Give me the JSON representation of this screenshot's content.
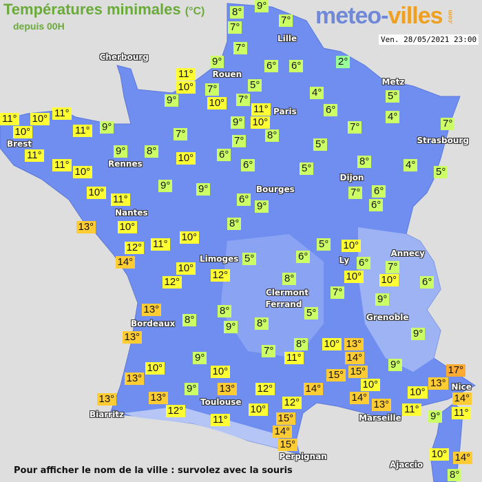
{
  "header": {
    "title": "Températures minimales",
    "unit": "(°C)",
    "subtitle": "depuis 00H"
  },
  "logo": {
    "part1": "meteo-",
    "part2": "villes",
    "suffix": ".com"
  },
  "datetime": "Ven. 28/05/2021 23:00",
  "footer": "Pour afficher le nom de la ville : survolez avec la souris",
  "colors": {
    "sea": "#dedede",
    "land": "#6f8ef0",
    "cold": "#99ff99",
    "cool": "#ccff66",
    "mild": "#ffff33",
    "warm": "#ffcc33",
    "hot": "#ffaa33"
  },
  "cities": [
    "Cherbourg",
    "Lille",
    "Rouen",
    "Metz",
    "Paris",
    "Brest",
    "Rennes",
    "Strasbourg",
    "Dijon",
    "Bourges",
    "Nantes",
    "Annecy",
    "Limoges",
    "Ly",
    "Clermont",
    "Ferrand",
    "Grenoble",
    "Bordeaux",
    "Toulouse",
    "Nice",
    "Biarritz",
    "Marseille",
    "Perpignan",
    "Ajaccio"
  ],
  "temperatures": [
    8,
    9,
    7,
    7,
    7,
    9,
    6,
    6,
    2,
    11,
    10,
    7,
    5,
    9,
    10,
    7,
    11,
    10,
    4,
    6,
    5,
    4,
    11,
    11,
    10,
    10,
    11,
    9,
    9,
    8,
    7,
    7,
    7,
    7,
    5,
    9,
    8,
    10,
    6,
    6,
    11,
    11,
    10,
    8,
    4,
    5,
    5,
    9,
    9,
    10,
    11,
    6,
    9,
    7,
    6,
    6,
    8,
    13,
    10,
    12,
    11,
    10,
    14,
    5,
    10,
    6,
    5,
    6,
    10,
    7,
    10,
    6,
    10,
    12,
    12,
    8,
    7,
    9,
    13,
    5,
    8,
    8,
    9,
    8,
    13,
    9,
    8,
    10,
    13,
    7,
    11,
    14,
    9,
    9,
    15,
    15,
    17,
    10,
    10,
    13,
    10,
    13,
    14,
    13,
    12,
    9,
    14,
    10,
    14,
    13,
    13,
    13,
    12,
    12,
    10,
    11,
    9,
    11,
    11,
    15,
    14,
    15,
    10,
    14,
    8
  ]
}
